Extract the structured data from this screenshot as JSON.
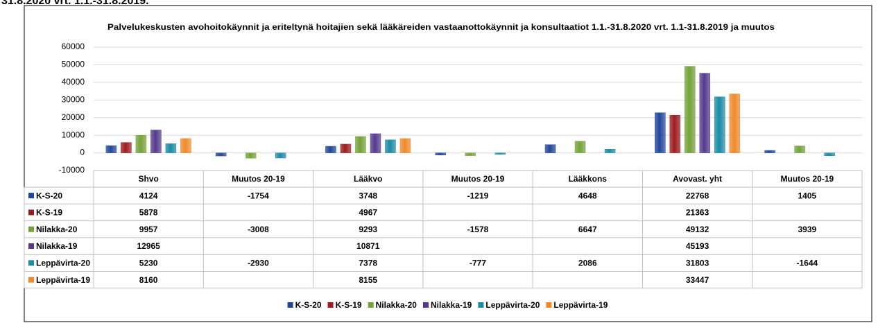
{
  "heading": "31.8.2020 vrt. 1.1.-31.8.2019.",
  "chart_data": {
    "type": "bar",
    "title": "Palvelukeskusten avohoitokäynnit ja eriteltynä hoitajien sekä lääkäreiden vastaanottokäynnit ja konsultaatiot  1.1.-31.8.2020 vrt. 1.1-31.8.2019 ja muutos",
    "categories": [
      "Shvo",
      "Muutos 20-19",
      "Lääkvo",
      "Muutos 20-19",
      "Lääkkons",
      "Avovast. yht",
      "Muutos 20-19"
    ],
    "series": [
      {
        "name": "K-S-20",
        "color": "#22479a",
        "values": [
          4124,
          -1754,
          3748,
          -1219,
          4648,
          22768,
          1405
        ]
      },
      {
        "name": "K-S-19",
        "color": "#9c1d1f",
        "values": [
          5878,
          null,
          4967,
          null,
          null,
          21363,
          null
        ]
      },
      {
        "name": "Nilakka-20",
        "color": "#74a23a",
        "values": [
          9957,
          -3008,
          9293,
          -1578,
          6647,
          49132,
          3939
        ]
      },
      {
        "name": "Nilakka-19",
        "color": "#553a8c",
        "values": [
          12965,
          null,
          10871,
          null,
          null,
          45193,
          null
        ]
      },
      {
        "name": "Leppävirta-20",
        "color": "#1d8aa6",
        "values": [
          5230,
          -2930,
          7378,
          -777,
          2086,
          31803,
          -1644
        ]
      },
      {
        "name": "Leppävirta-19",
        "color": "#ef8a2c",
        "values": [
          8160,
          null,
          8155,
          null,
          null,
          33447,
          null
        ]
      }
    ],
    "ylim": [
      -10000,
      60000
    ],
    "yticks": [
      -10000,
      0,
      10000,
      20000,
      30000,
      40000,
      50000,
      60000
    ],
    "grid": true
  }
}
